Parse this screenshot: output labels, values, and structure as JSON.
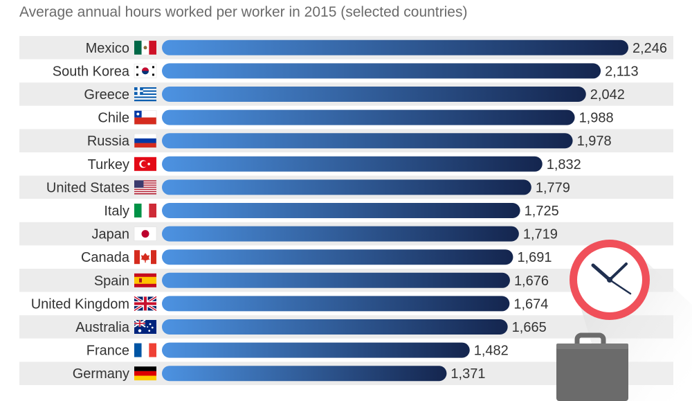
{
  "chart_data": {
    "type": "bar",
    "orientation": "horizontal",
    "title": "Average annual hours worked per worker in 2015 (selected countries)",
    "xlabel": "",
    "ylabel": "",
    "xlim": [
      0,
      2246
    ],
    "categories": [
      "Mexico",
      "South Korea",
      "Greece",
      "Chile",
      "Russia",
      "Turkey",
      "United States",
      "Italy",
      "Japan",
      "Canada",
      "Spain",
      "United Kingdom",
      "Australia",
      "France",
      "Germany"
    ],
    "values": [
      2246,
      2113,
      2042,
      1988,
      1978,
      1832,
      1779,
      1725,
      1719,
      1691,
      1676,
      1674,
      1665,
      1482,
      1371
    ],
    "value_labels": [
      "2,246",
      "2,113",
      "2,042",
      "1,988",
      "1,978",
      "1,832",
      "1,779",
      "1,725",
      "1,719",
      "1,691",
      "1,676",
      "1,674",
      "1,665",
      "1,482",
      "1,371"
    ],
    "flags": [
      "mexico-flag-icon",
      "south-korea-flag-icon",
      "greece-flag-icon",
      "chile-flag-icon",
      "russia-flag-icon",
      "turkey-flag-icon",
      "united-states-flag-icon",
      "italy-flag-icon",
      "japan-flag-icon",
      "canada-flag-icon",
      "spain-flag-icon",
      "united-kingdom-flag-icon",
      "australia-flag-icon",
      "france-flag-icon",
      "germany-flag-icon"
    ],
    "grid": false,
    "legend": "none"
  },
  "decorations": {
    "icons": [
      "clock-icon",
      "briefcase-icon"
    ]
  },
  "colors": {
    "bar_start": "#4d93e2",
    "bar_end": "#14254e",
    "row_stripe": "#ececec",
    "clock_rim": "#f0505a",
    "briefcase": "#6b6b6b"
  }
}
